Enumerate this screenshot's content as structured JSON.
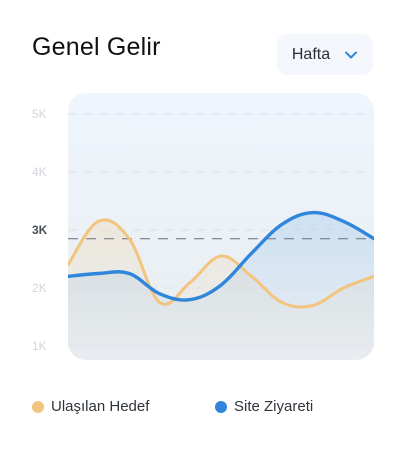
{
  "header": {
    "title": "Genel Gelir",
    "period_select": {
      "value": "Hafta",
      "icon": "chevron-down-icon"
    }
  },
  "colors": {
    "target": "#f3c47e",
    "visits": "#2f86db",
    "plot_bg_top": "#eef5fc",
    "plot_bg_bottom": "#e9edf1"
  },
  "chart_data": {
    "type": "line",
    "title": "Genel Gelir",
    "xlabel": "",
    "ylabel": "",
    "ylim": [
      750,
      5200
    ],
    "y_ticks": [
      "5K",
      "4K",
      "3K",
      "2K",
      "1K"
    ],
    "y_tick_values": [
      5000,
      4000,
      3000,
      2000,
      1000
    ],
    "highlighted_tick": "3K",
    "reference_line": 2850,
    "grid": true,
    "legend_position": "bottom",
    "x": [
      0,
      1,
      2,
      3,
      4,
      5,
      6,
      7,
      8,
      9,
      10
    ],
    "series": [
      {
        "name": "Ulaşılan Hedef",
        "color": "#f3c47e",
        "fill": true,
        "values": [
          2400,
          3150,
          2850,
          1750,
          2100,
          2550,
          2200,
          1750,
          1700,
          2000,
          2200
        ]
      },
      {
        "name": "Site Ziyareti",
        "color": "#2f86db",
        "fill": true,
        "values": [
          2200,
          2250,
          2250,
          1900,
          1800,
          2050,
          2600,
          3100,
          3300,
          3150,
          2850
        ]
      }
    ]
  },
  "legend": {
    "items": [
      {
        "label": "Ulaşılan Hedef",
        "color": "#f3c47e"
      },
      {
        "label": "Site Ziyareti",
        "color": "#2f86db"
      }
    ]
  }
}
